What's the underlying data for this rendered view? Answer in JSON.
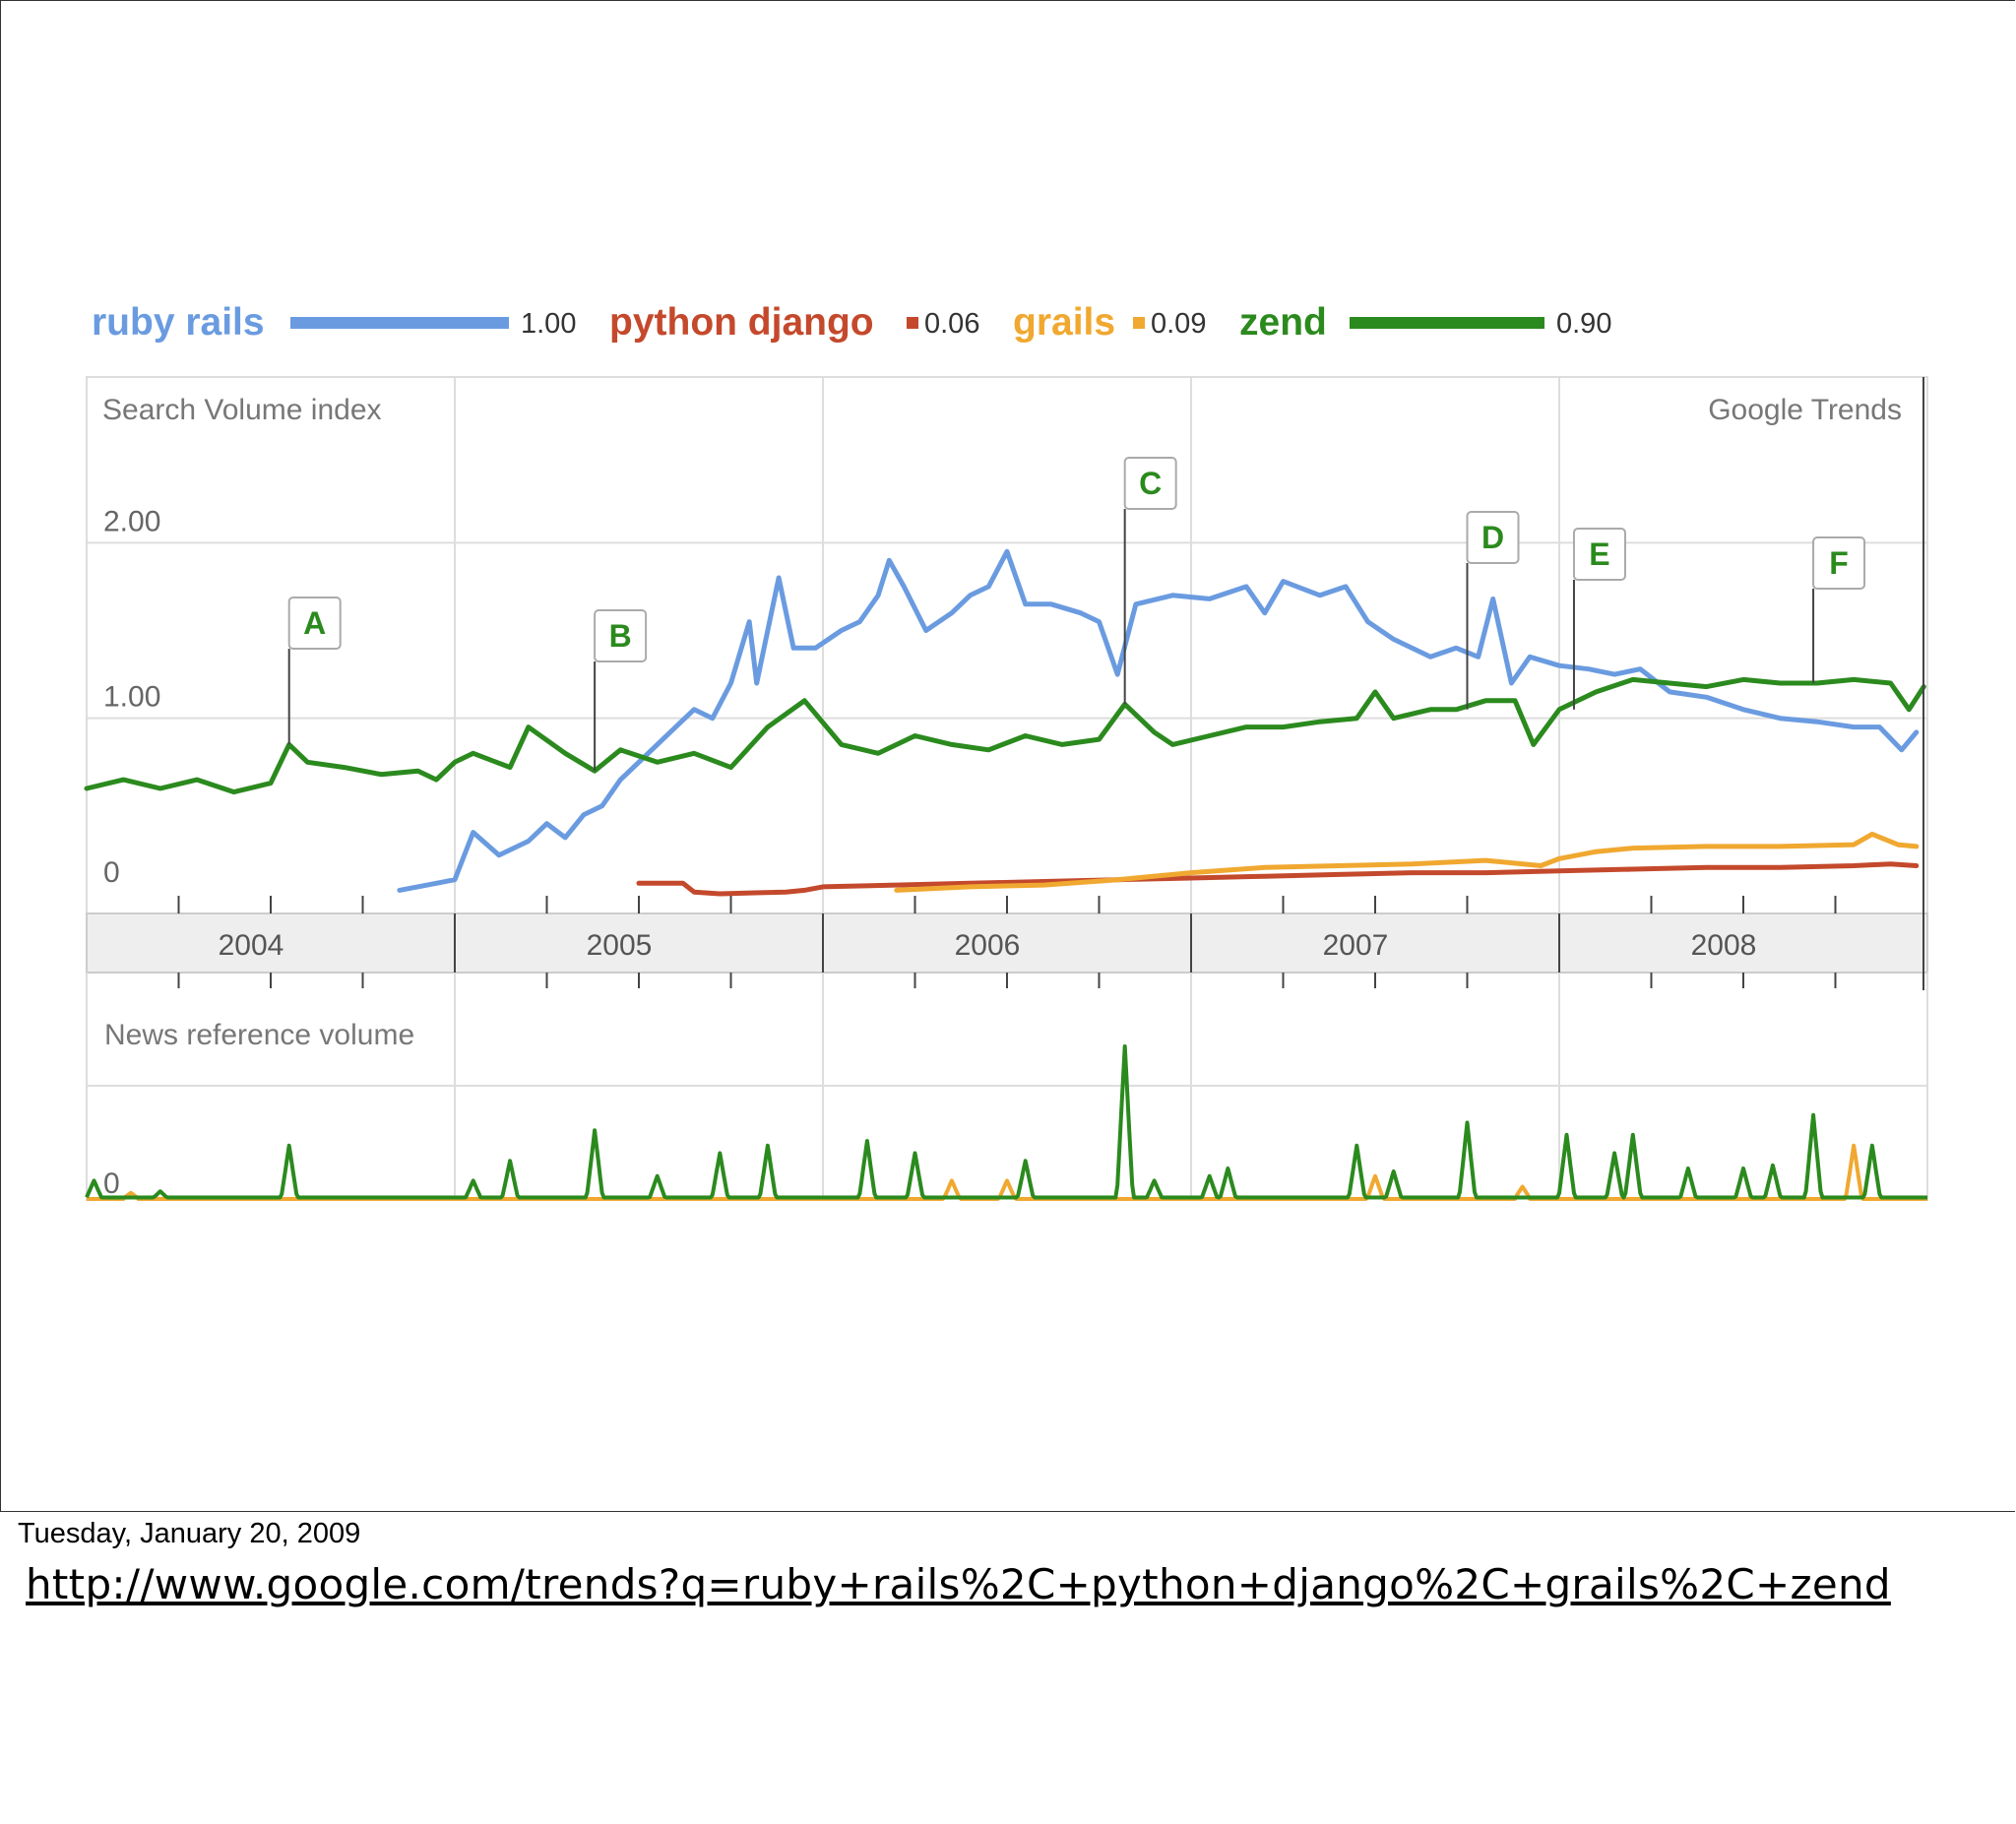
{
  "slide": {
    "date_text": "Tuesday, January 20, 2009",
    "url_text": "http://www.google.com/trends?q=ruby+rails%2C+python+django%2C+grails%2C+zend"
  },
  "colors": {
    "ruby_rails": "#6a9be0",
    "python_django": "#c4492c",
    "grails": "#f0a830",
    "zend": "#2b8a1e",
    "grid": "#dddddd",
    "axis_band": "#eeeeee",
    "label_gray": "#777777"
  },
  "chart_data": {
    "type": "line",
    "source_label": "Google Trends",
    "legend": [
      {
        "name": "ruby rails",
        "value": "1.00",
        "color_key": "ruby_rails",
        "bar": "long"
      },
      {
        "name": "python django",
        "value": "0.06",
        "color_key": "python_django",
        "bar": "dot"
      },
      {
        "name": "grails",
        "value": "0.09",
        "color_key": "grails",
        "bar": "dot"
      },
      {
        "name": "zend",
        "value": "0.90",
        "color_key": "zend",
        "bar": "long"
      }
    ],
    "search_panel": {
      "title": "Search Volume index",
      "y_ticks": [
        {
          "value": 0,
          "label": "0"
        },
        {
          "value": 1,
          "label": "1.00"
        },
        {
          "value": 2,
          "label": "2.00"
        }
      ],
      "ylim": [
        0,
        3
      ],
      "xlim": [
        2004.0,
        2009.0
      ],
      "series": [
        {
          "name": "ruby rails",
          "color_key": "ruby_rails",
          "points": [
            [
              2004.85,
              0.02
            ],
            [
              2004.95,
              0.06
            ],
            [
              2005.0,
              0.08
            ],
            [
              2005.05,
              0.35
            ],
            [
              2005.12,
              0.22
            ],
            [
              2005.2,
              0.3
            ],
            [
              2005.25,
              0.4
            ],
            [
              2005.3,
              0.32
            ],
            [
              2005.35,
              0.45
            ],
            [
              2005.4,
              0.5
            ],
            [
              2005.45,
              0.65
            ],
            [
              2005.5,
              0.75
            ],
            [
              2005.55,
              0.85
            ],
            [
              2005.6,
              0.95
            ],
            [
              2005.65,
              1.05
            ],
            [
              2005.7,
              1.0
            ],
            [
              2005.75,
              1.2
            ],
            [
              2005.8,
              1.55
            ],
            [
              2005.82,
              1.2
            ],
            [
              2005.88,
              1.8
            ],
            [
              2005.92,
              1.4
            ],
            [
              2005.98,
              1.4
            ],
            [
              2006.05,
              1.5
            ],
            [
              2006.1,
              1.55
            ],
            [
              2006.15,
              1.7
            ],
            [
              2006.18,
              1.9
            ],
            [
              2006.22,
              1.75
            ],
            [
              2006.28,
              1.5
            ],
            [
              2006.35,
              1.6
            ],
            [
              2006.4,
              1.7
            ],
            [
              2006.45,
              1.75
            ],
            [
              2006.5,
              1.95
            ],
            [
              2006.55,
              1.65
            ],
            [
              2006.62,
              1.65
            ],
            [
              2006.7,
              1.6
            ],
            [
              2006.75,
              1.55
            ],
            [
              2006.8,
              1.25
            ],
            [
              2006.85,
              1.65
            ],
            [
              2006.95,
              1.7
            ],
            [
              2007.05,
              1.68
            ],
            [
              2007.15,
              1.75
            ],
            [
              2007.2,
              1.6
            ],
            [
              2007.25,
              1.78
            ],
            [
              2007.35,
              1.7
            ],
            [
              2007.42,
              1.75
            ],
            [
              2007.48,
              1.55
            ],
            [
              2007.55,
              1.45
            ],
            [
              2007.65,
              1.35
            ],
            [
              2007.72,
              1.4
            ],
            [
              2007.78,
              1.35
            ],
            [
              2007.82,
              1.68
            ],
            [
              2007.87,
              1.2
            ],
            [
              2007.92,
              1.35
            ],
            [
              2008.0,
              1.3
            ],
            [
              2008.08,
              1.28
            ],
            [
              2008.15,
              1.25
            ],
            [
              2008.22,
              1.28
            ],
            [
              2008.3,
              1.15
            ],
            [
              2008.4,
              1.12
            ],
            [
              2008.5,
              1.05
            ],
            [
              2008.6,
              1.0
            ],
            [
              2008.7,
              0.98
            ],
            [
              2008.8,
              0.95
            ],
            [
              2008.87,
              0.95
            ],
            [
              2008.93,
              0.82
            ],
            [
              2008.97,
              0.92
            ]
          ]
        },
        {
          "name": "python django",
          "color_key": "python_django",
          "points": [
            [
              2005.5,
              0.06
            ],
            [
              2005.62,
              0.06
            ],
            [
              2005.65,
              0.01
            ],
            [
              2005.72,
              0.0
            ],
            [
              2005.9,
              0.01
            ],
            [
              2005.95,
              0.02
            ],
            [
              2006.0,
              0.04
            ],
            [
              2006.2,
              0.05
            ],
            [
              2006.4,
              0.06
            ],
            [
              2006.6,
              0.07
            ],
            [
              2006.8,
              0.08
            ],
            [
              2007.0,
              0.09
            ],
            [
              2007.2,
              0.1
            ],
            [
              2007.4,
              0.11
            ],
            [
              2007.6,
              0.12
            ],
            [
              2007.8,
              0.12
            ],
            [
              2008.0,
              0.13
            ],
            [
              2008.2,
              0.14
            ],
            [
              2008.4,
              0.15
            ],
            [
              2008.6,
              0.15
            ],
            [
              2008.8,
              0.16
            ],
            [
              2008.9,
              0.17
            ],
            [
              2008.97,
              0.16
            ]
          ]
        },
        {
          "name": "grails",
          "color_key": "grails",
          "points": [
            [
              2006.2,
              0.02
            ],
            [
              2006.4,
              0.04
            ],
            [
              2006.6,
              0.05
            ],
            [
              2006.8,
              0.08
            ],
            [
              2007.0,
              0.12
            ],
            [
              2007.2,
              0.15
            ],
            [
              2007.4,
              0.16
            ],
            [
              2007.6,
              0.17
            ],
            [
              2007.8,
              0.19
            ],
            [
              2007.95,
              0.16
            ],
            [
              2008.0,
              0.2
            ],
            [
              2008.1,
              0.24
            ],
            [
              2008.2,
              0.26
            ],
            [
              2008.4,
              0.27
            ],
            [
              2008.6,
              0.27
            ],
            [
              2008.8,
              0.28
            ],
            [
              2008.85,
              0.34
            ],
            [
              2008.92,
              0.28
            ],
            [
              2008.97,
              0.27
            ]
          ]
        },
        {
          "name": "zend",
          "color_key": "zend",
          "points": [
            [
              2004.0,
              0.6
            ],
            [
              2004.1,
              0.65
            ],
            [
              2004.2,
              0.6
            ],
            [
              2004.3,
              0.65
            ],
            [
              2004.4,
              0.58
            ],
            [
              2004.5,
              0.63
            ],
            [
              2004.55,
              0.85
            ],
            [
              2004.6,
              0.75
            ],
            [
              2004.7,
              0.72
            ],
            [
              2004.8,
              0.68
            ],
            [
              2004.9,
              0.7
            ],
            [
              2004.95,
              0.65
            ],
            [
              2005.0,
              0.75
            ],
            [
              2005.05,
              0.8
            ],
            [
              2005.15,
              0.72
            ],
            [
              2005.2,
              0.95
            ],
            [
              2005.3,
              0.8
            ],
            [
              2005.38,
              0.7
            ],
            [
              2005.45,
              0.82
            ],
            [
              2005.55,
              0.75
            ],
            [
              2005.65,
              0.8
            ],
            [
              2005.75,
              0.72
            ],
            [
              2005.85,
              0.95
            ],
            [
              2005.95,
              1.1
            ],
            [
              2006.05,
              0.85
            ],
            [
              2006.15,
              0.8
            ],
            [
              2006.25,
              0.9
            ],
            [
              2006.35,
              0.85
            ],
            [
              2006.45,
              0.82
            ],
            [
              2006.55,
              0.9
            ],
            [
              2006.65,
              0.85
            ],
            [
              2006.75,
              0.88
            ],
            [
              2006.82,
              1.08
            ],
            [
              2006.9,
              0.92
            ],
            [
              2006.95,
              0.85
            ],
            [
              2007.05,
              0.9
            ],
            [
              2007.15,
              0.95
            ],
            [
              2007.25,
              0.95
            ],
            [
              2007.35,
              0.98
            ],
            [
              2007.45,
              1.0
            ],
            [
              2007.5,
              1.15
            ],
            [
              2007.55,
              1.0
            ],
            [
              2007.65,
              1.05
            ],
            [
              2007.72,
              1.05
            ],
            [
              2007.8,
              1.1
            ],
            [
              2007.88,
              1.1
            ],
            [
              2007.93,
              0.85
            ],
            [
              2008.0,
              1.05
            ],
            [
              2008.1,
              1.15
            ],
            [
              2008.2,
              1.22
            ],
            [
              2008.3,
              1.2
            ],
            [
              2008.4,
              1.18
            ],
            [
              2008.5,
              1.22
            ],
            [
              2008.6,
              1.2
            ],
            [
              2008.7,
              1.2
            ],
            [
              2008.8,
              1.22
            ],
            [
              2008.9,
              1.2
            ],
            [
              2008.95,
              1.05
            ],
            [
              2008.99,
              1.18
            ]
          ]
        }
      ]
    },
    "x_axis": {
      "tick_labels": [
        {
          "x": 2004.5,
          "label": "2004"
        },
        {
          "x": 2005.5,
          "label": "2005"
        },
        {
          "x": 2006.5,
          "label": "2006"
        },
        {
          "x": 2007.5,
          "label": "2007"
        },
        {
          "x": 2008.5,
          "label": "2008"
        }
      ],
      "year_boundaries": [
        2005.0,
        2006.0,
        2007.0,
        2008.0
      ]
    },
    "annotations": [
      {
        "label": "A",
        "x": 2004.55
      },
      {
        "label": "B",
        "x": 2005.38
      },
      {
        "label": "C",
        "x": 2006.82
      },
      {
        "label": "D",
        "x": 2007.75
      },
      {
        "label": "E",
        "x": 2008.04
      },
      {
        "label": "F",
        "x": 2008.69
      }
    ],
    "news_panel": {
      "title": "News reference volume",
      "y_ticks": [
        {
          "value": 0,
          "label": "0"
        }
      ],
      "ylim": [
        0,
        1.0
      ],
      "series": [
        {
          "name": "zend",
          "color_key": "zend",
          "spikes": [
            [
              2004.02,
              0.12
            ],
            [
              2004.2,
              0.05
            ],
            [
              2004.55,
              0.35
            ],
            [
              2005.05,
              0.12
            ],
            [
              2005.15,
              0.25
            ],
            [
              2005.38,
              0.45
            ],
            [
              2005.55,
              0.15
            ],
            [
              2005.72,
              0.3
            ],
            [
              2005.85,
              0.35
            ],
            [
              2006.12,
              0.38
            ],
            [
              2006.25,
              0.3
            ],
            [
              2006.55,
              0.25
            ],
            [
              2006.82,
              1.0
            ],
            [
              2006.9,
              0.12
            ],
            [
              2007.05,
              0.15
            ],
            [
              2007.1,
              0.2
            ],
            [
              2007.45,
              0.35
            ],
            [
              2007.55,
              0.18
            ],
            [
              2007.75,
              0.5
            ],
            [
              2008.02,
              0.42
            ],
            [
              2008.15,
              0.3
            ],
            [
              2008.2,
              0.42
            ],
            [
              2008.35,
              0.2
            ],
            [
              2008.5,
              0.2
            ],
            [
              2008.58,
              0.22
            ],
            [
              2008.69,
              0.55
            ],
            [
              2008.85,
              0.35
            ]
          ]
        },
        {
          "name": "grails",
          "color_key": "grails",
          "spikes": [
            [
              2004.12,
              0.04
            ],
            [
              2006.35,
              0.12
            ],
            [
              2006.5,
              0.12
            ],
            [
              2007.5,
              0.15
            ],
            [
              2007.9,
              0.08
            ],
            [
              2008.8,
              0.35
            ]
          ]
        }
      ]
    }
  }
}
